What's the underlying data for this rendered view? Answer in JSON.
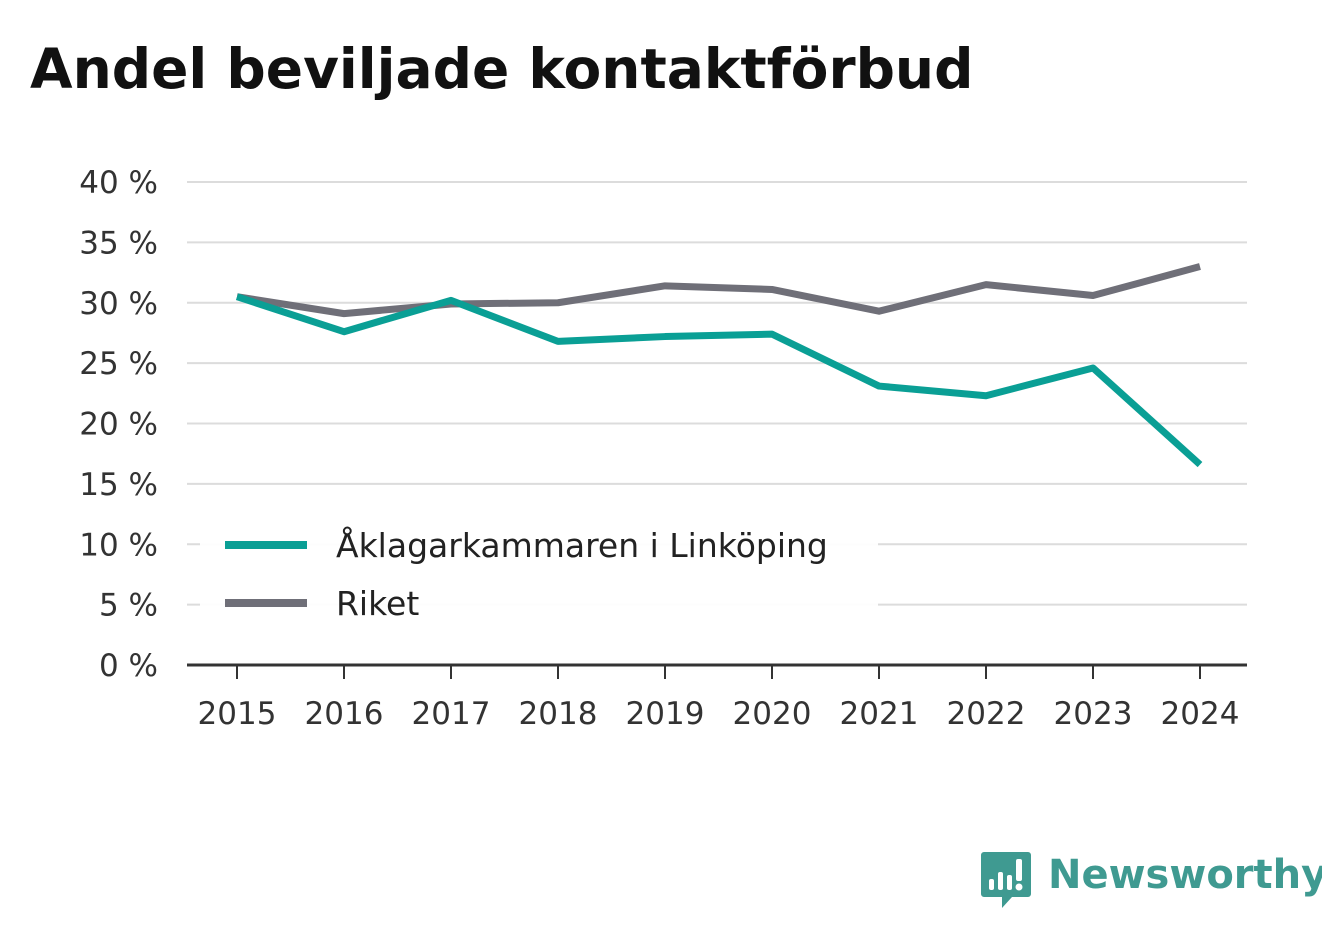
{
  "chart_data": {
    "type": "line",
    "title": "Andel beviljade kontaktförbud",
    "x": [
      "2015",
      "2016",
      "2017",
      "2018",
      "2019",
      "2020",
      "2021",
      "2022",
      "2023",
      "2024"
    ],
    "series": [
      {
        "name": "Åklagarkammaren i Linköping",
        "color": "#0a9f95",
        "values": [
          30.5,
          27.6,
          30.2,
          26.8,
          27.2,
          27.4,
          23.1,
          22.3,
          24.6,
          16.6
        ]
      },
      {
        "name": "Riket",
        "color": "#6f6f78",
        "values": [
          30.5,
          29.1,
          29.9,
          30.0,
          31.4,
          31.1,
          29.3,
          31.5,
          30.6,
          33.0
        ]
      }
    ],
    "ylim": [
      0,
      40
    ],
    "yticks": [
      0,
      5,
      10,
      15,
      20,
      25,
      30,
      35,
      40
    ],
    "ytick_suffix": " %",
    "xlabel": "",
    "ylabel": "",
    "grid": true,
    "legend_position": "bottom-left inside plot"
  },
  "brand": {
    "name": "Newsworthy",
    "icon": "newsworthy-logo-icon",
    "color": "#3f9a91"
  }
}
